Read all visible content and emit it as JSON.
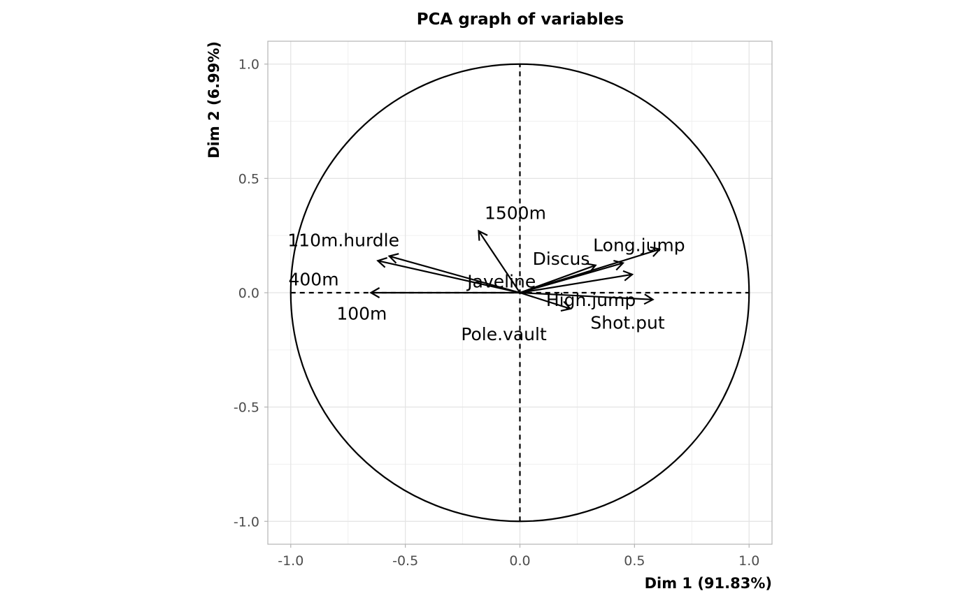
{
  "chart_data": {
    "type": "scatter",
    "subtype": "pca-variable-correlation-circle",
    "title": "PCA graph of variables",
    "xlabel": "Dim 1 (91.83%)",
    "ylabel": "Dim 2 (6.99%)",
    "xlim": [
      -1.1,
      1.1
    ],
    "ylim": [
      -1.1,
      1.1
    ],
    "x_ticks": [
      -1.0,
      -0.5,
      0.0,
      0.5,
      1.0
    ],
    "y_ticks": [
      -1.0,
      -0.5,
      0.0,
      0.5,
      1.0
    ],
    "x_tick_labels": [
      "-1.0",
      "-0.5",
      "0.0",
      "0.5",
      "1.0"
    ],
    "y_tick_labels": [
      "-1.0",
      "-0.5",
      "0.0",
      "0.5",
      "1.0"
    ],
    "grid": true,
    "unit_circle": true,
    "legend": "none",
    "arrow_color": "#000000",
    "variables": [
      {
        "name": "1500m",
        "x": -0.18,
        "y": 0.27,
        "label_x": -0.02,
        "label_y": 0.35
      },
      {
        "name": "110m.hurdle",
        "x": -0.57,
        "y": 0.16,
        "label_x": -0.77,
        "label_y": 0.23
      },
      {
        "name": "400m",
        "x": -0.62,
        "y": 0.14,
        "label_x": -0.9,
        "label_y": 0.06
      },
      {
        "name": "100m",
        "x": -0.65,
        "y": 0.0,
        "label_x": -0.69,
        "label_y": -0.09
      },
      {
        "name": "Javeline",
        "x": 0.33,
        "y": 0.12,
        "label_x": -0.08,
        "label_y": 0.05
      },
      {
        "name": "Discus",
        "x": 0.45,
        "y": 0.13,
        "label_x": 0.18,
        "label_y": 0.15
      },
      {
        "name": "Long.jump",
        "x": 0.61,
        "y": 0.19,
        "label_x": 0.52,
        "label_y": 0.21
      },
      {
        "name": "High.jump",
        "x": 0.49,
        "y": 0.08,
        "label_x": 0.31,
        "label_y": -0.03
      },
      {
        "name": "Shot.put",
        "x": 0.58,
        "y": -0.03,
        "label_x": 0.47,
        "label_y": -0.13
      },
      {
        "name": "Pole.vault",
        "x": 0.22,
        "y": -0.07,
        "label_x": -0.07,
        "label_y": -0.18
      }
    ]
  }
}
